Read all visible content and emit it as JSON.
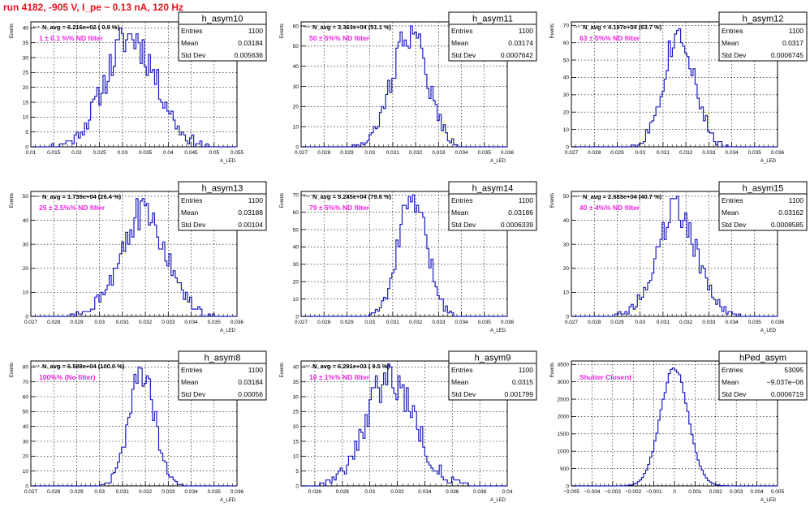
{
  "page": {
    "title": "run 4182,  -905 V, I_pe ~ 0.13 nA, 120 Hz"
  },
  "style": {
    "line": "#1c1cc0",
    "annotation": "#f020e0",
    "title": "#e8101a"
  },
  "chart_data": [
    {
      "type": "histogram",
      "hist_name": "h_asym10",
      "nav_label": "N_avg = 6.216e+02 ( 0.9 %)",
      "filter_label": "1 ± 0.1 %% ND filter",
      "stats": [
        [
          "Entries",
          "1100"
        ],
        [
          "Mean",
          "0.03184"
        ],
        [
          "Std Dev",
          "0.005636"
        ]
      ],
      "ylabel": "Events",
      "xlabel": "A_LED",
      "xlim": [
        0.01,
        0.055
      ],
      "ylim": [
        0,
        42
      ],
      "xticks": [
        0.01,
        0.015,
        0.02,
        0.025,
        0.03,
        0.035,
        0.04,
        0.045,
        0.05,
        0.055
      ],
      "xtick_labels": [
        "0.01",
        "0.015",
        "0.02",
        "0.025",
        "0.03",
        "0.035",
        "0.04",
        "0.045",
        "0.05",
        "0.055"
      ],
      "yticks": [
        0,
        5,
        10,
        15,
        20,
        25,
        30,
        35,
        40
      ],
      "mean": 0.03184,
      "std": 0.005636,
      "entries": 1100,
      "peak": 40,
      "nbins": 100,
      "seed": 11
    },
    {
      "type": "histogram",
      "hist_name": "h_asym11",
      "nav_label": "N_avg = 3.363e+04 (51.1 %)",
      "filter_label": "50 ± 5%% ND filter",
      "stats": [
        [
          "Entries",
          "1100"
        ],
        [
          "Mean",
          "0.03174"
        ],
        [
          "Std Dev",
          "0.0007642"
        ]
      ],
      "ylabel": "Events",
      "xlabel": "A_LED",
      "xlim": [
        0.027,
        0.036
      ],
      "ylim": [
        0,
        62
      ],
      "xticks": [
        0.027,
        0.028,
        0.029,
        0.03,
        0.031,
        0.032,
        0.033,
        0.034,
        0.035,
        0.036
      ],
      "xtick_labels": [
        "0.027",
        "0.028",
        "0.029",
        "0.03",
        "0.031",
        "0.032",
        "0.033",
        "0.034",
        "0.035",
        "0.036"
      ],
      "yticks": [
        0,
        10,
        20,
        30,
        40,
        50,
        60
      ],
      "mean": 0.03174,
      "std": 0.0007642,
      "entries": 1100,
      "peak": 60,
      "nbins": 100,
      "seed": 22
    },
    {
      "type": "histogram",
      "hist_name": "h_asym12",
      "nav_label": "N_avg = 4.197e+04 (63.7 %)",
      "filter_label": "63 ± 5%% ND filter",
      "stats": [
        [
          "Entries",
          "1100"
        ],
        [
          "Mean",
          "0.0317"
        ],
        [
          "Std Dev",
          "0.0006745"
        ]
      ],
      "ylabel": "Events",
      "xlabel": "A_LED",
      "xlim": [
        0.027,
        0.036
      ],
      "ylim": [
        0,
        72
      ],
      "xticks": [
        0.027,
        0.028,
        0.029,
        0.03,
        0.031,
        0.032,
        0.033,
        0.034,
        0.035,
        0.036
      ],
      "xtick_labels": [
        "0.027",
        "0.028",
        "0.029",
        "0.03",
        "0.031",
        "0.032",
        "0.033",
        "0.034",
        "0.035",
        "0.036"
      ],
      "yticks": [
        0,
        10,
        20,
        30,
        40,
        50,
        60,
        70
      ],
      "mean": 0.0317,
      "std": 0.0006745,
      "entries": 1100,
      "peak": 68,
      "nbins": 100,
      "seed": 33
    },
    {
      "type": "histogram",
      "hist_name": "h_asym13",
      "nav_label": "N_avg = 1.739e+04 (26.4 %)",
      "filter_label": "25 ± 2.5%% ND filter",
      "stats": [
        [
          "Entries",
          "1100"
        ],
        [
          "Mean",
          "0.03188"
        ],
        [
          "Std Dev",
          "0.00104"
        ]
      ],
      "ylabel": "Events",
      "xlabel": "A_LED",
      "xlim": [
        0.027,
        0.036
      ],
      "ylim": [
        0,
        52
      ],
      "xticks": [
        0.027,
        0.028,
        0.029,
        0.03,
        0.031,
        0.032,
        0.033,
        0.034,
        0.035,
        0.036
      ],
      "xtick_labels": [
        "0.027",
        "0.028",
        "0.029",
        "0.03",
        "0.031",
        "0.032",
        "0.033",
        "0.034",
        "0.035",
        "0.036"
      ],
      "yticks": [
        0,
        10,
        20,
        30,
        40,
        50
      ],
      "mean": 0.03188,
      "std": 0.00104,
      "entries": 1100,
      "peak": 49,
      "nbins": 100,
      "seed": 44
    },
    {
      "type": "histogram",
      "hist_name": "h_asym14",
      "nav_label": "N_avg = 5.245e+04 (79.6 %)",
      "filter_label": "79 ± 5%% ND filter",
      "stats": [
        [
          "Entries",
          "1100"
        ],
        [
          "Mean",
          "0.03186"
        ],
        [
          "Std Dev",
          "0.0006339"
        ]
      ],
      "ylabel": "Events",
      "xlabel": "A_LED",
      "xlim": [
        0.027,
        0.036
      ],
      "ylim": [
        0,
        72
      ],
      "xticks": [
        0.027,
        0.028,
        0.029,
        0.03,
        0.031,
        0.032,
        0.033,
        0.034,
        0.035,
        0.036
      ],
      "xtick_labels": [
        "0.027",
        "0.028",
        "0.029",
        "0.03",
        "0.031",
        "0.032",
        "0.033",
        "0.034",
        "0.035",
        "0.036"
      ],
      "yticks": [
        0,
        10,
        20,
        30,
        40,
        50,
        60,
        70
      ],
      "mean": 0.03186,
      "std": 0.0006339,
      "entries": 1100,
      "peak": 70,
      "nbins": 100,
      "seed": 55
    },
    {
      "type": "histogram",
      "hist_name": "h_asym15",
      "nav_label": "N_avg = 2.683e+04 (40.7 %)",
      "filter_label": "40 ± 4%% ND filter",
      "stats": [
        [
          "Entries",
          "1100"
        ],
        [
          "Mean",
          "0.03162"
        ],
        [
          "Std Dev",
          "0.0008585"
        ]
      ],
      "ylabel": "Events",
      "xlabel": "A_LED",
      "xlim": [
        0.027,
        0.036
      ],
      "ylim": [
        0,
        52
      ],
      "xticks": [
        0.027,
        0.028,
        0.029,
        0.03,
        0.031,
        0.032,
        0.033,
        0.034,
        0.035,
        0.036
      ],
      "xtick_labels": [
        "0.027",
        "0.028",
        "0.029",
        "0.03",
        "0.031",
        "0.032",
        "0.033",
        "0.034",
        "0.035",
        "0.036"
      ],
      "yticks": [
        0,
        10,
        20,
        30,
        40,
        50
      ],
      "mean": 0.03162,
      "std": 0.0008585,
      "entries": 1100,
      "peak": 50,
      "nbins": 100,
      "seed": 66
    },
    {
      "type": "histogram",
      "hist_name": "h_asym8",
      "nav_label": "N_avg = 6.588e+04 (100.0 %)",
      "filter_label": "100%% (No filter)",
      "stats": [
        [
          "Entries",
          "1100"
        ],
        [
          "Mean",
          "0.03184"
        ],
        [
          "Std Dev",
          "0.00056"
        ]
      ],
      "ylabel": "Events",
      "xlabel": "A_LED",
      "xlim": [
        0.027,
        0.036
      ],
      "ylim": [
        0,
        84
      ],
      "xticks": [
        0.027,
        0.028,
        0.029,
        0.03,
        0.031,
        0.032,
        0.033,
        0.034,
        0.035,
        0.036
      ],
      "xtick_labels": [
        "0.027",
        "0.028",
        "0.029",
        "0.03",
        "0.031",
        "0.032",
        "0.033",
        "0.034",
        "0.035",
        "0.036"
      ],
      "yticks": [
        0,
        10,
        20,
        30,
        40,
        50,
        60,
        70,
        80
      ],
      "mean": 0.03184,
      "std": 0.00056,
      "entries": 1100,
      "peak": 80,
      "nbins": 100,
      "seed": 77
    },
    {
      "type": "histogram",
      "hist_name": "h_asym9",
      "nav_label": "N_avg = 6.291e+03 ( 9.5 %)",
      "filter_label": "10 ± 1%% ND filter",
      "stats": [
        [
          "Entries",
          "1100"
        ],
        [
          "Mean",
          "0.0315"
        ],
        [
          "Std Dev",
          "0.001799"
        ]
      ],
      "ylabel": "Events",
      "xlabel": "A_LED",
      "xlim": [
        0.025,
        0.04
      ],
      "ylim": [
        0,
        42
      ],
      "xticks": [
        0.026,
        0.028,
        0.03,
        0.032,
        0.034,
        0.036,
        0.038,
        0.04
      ],
      "xtick_labels": [
        "0.026",
        "0.028",
        "0.03",
        "0.032",
        "0.034",
        "0.036",
        "0.038",
        "0.04"
      ],
      "yticks": [
        0,
        5,
        10,
        15,
        20,
        25,
        30,
        35,
        40
      ],
      "mean": 0.0315,
      "std": 0.001799,
      "entries": 1100,
      "peak": 41,
      "nbins": 100,
      "seed": 88
    },
    {
      "type": "histogram",
      "hist_name": "hPed_asym",
      "nav_label": "",
      "filter_label": "Shutter Closerd",
      "stats": [
        [
          "Entries",
          "53095"
        ],
        [
          "Mean",
          "−9.037e−06"
        ],
        [
          "Std Dev",
          "0.0006719"
        ]
      ],
      "ylabel": "Events",
      "xlabel": "A_LED",
      "xlim": [
        -0.005,
        0.005
      ],
      "ylim": [
        0,
        3600
      ],
      "xticks": [
        -0.005,
        -0.004,
        -0.003,
        -0.002,
        -0.001,
        0,
        0.001,
        0.002,
        0.003,
        0.004,
        0.005
      ],
      "xtick_labels": [
        "−0.005",
        "−0.004",
        "−0.003",
        "−0.002",
        "−0.001",
        "0",
        "0.001",
        "0.002",
        "0.003",
        "0.004",
        "0.005"
      ],
      "yticks": [
        0,
        500,
        1000,
        1500,
        2000,
        2500,
        3000,
        3500
      ],
      "mean": -9e-06,
      "std": 0.0006719,
      "entries": 53095,
      "peak": 3400,
      "nbins": 100,
      "seed": 99
    }
  ]
}
